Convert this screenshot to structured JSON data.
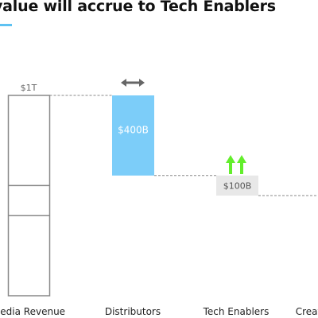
{
  "title": "value will accrue to Tech Enablers",
  "colors": {
    "distributor_bar": "#7ccdf9",
    "tech_enabler_label_bg": "#e8e8e8",
    "up_arrow": "#63ee2c",
    "double_arrow": "#666666",
    "outline": "#888888",
    "accent_underline": "#5ec2f2"
  },
  "chart_data": {
    "type": "bar",
    "subtype": "waterfall",
    "title": "value will accrue to Tech Enablers",
    "categories": [
      "Media Revenue",
      "Distributors",
      "Tech Enablers",
      "Creat"
    ],
    "unit": "$B",
    "ylim": [
      0,
      1000
    ],
    "media_revenue": {
      "total": 1000,
      "label": "$1T",
      "segment_dividers": [
        550,
        400
      ]
    },
    "distributors": {
      "value": 400,
      "from": 1000,
      "to": 600,
      "label": "$400B",
      "indicator": "double-arrow-horizontal"
    },
    "tech_enablers": {
      "value": 100,
      "from": 600,
      "to": 500,
      "label": "$100B",
      "indicator": "double-arrow-up"
    },
    "grid": false,
    "legend": "none"
  }
}
